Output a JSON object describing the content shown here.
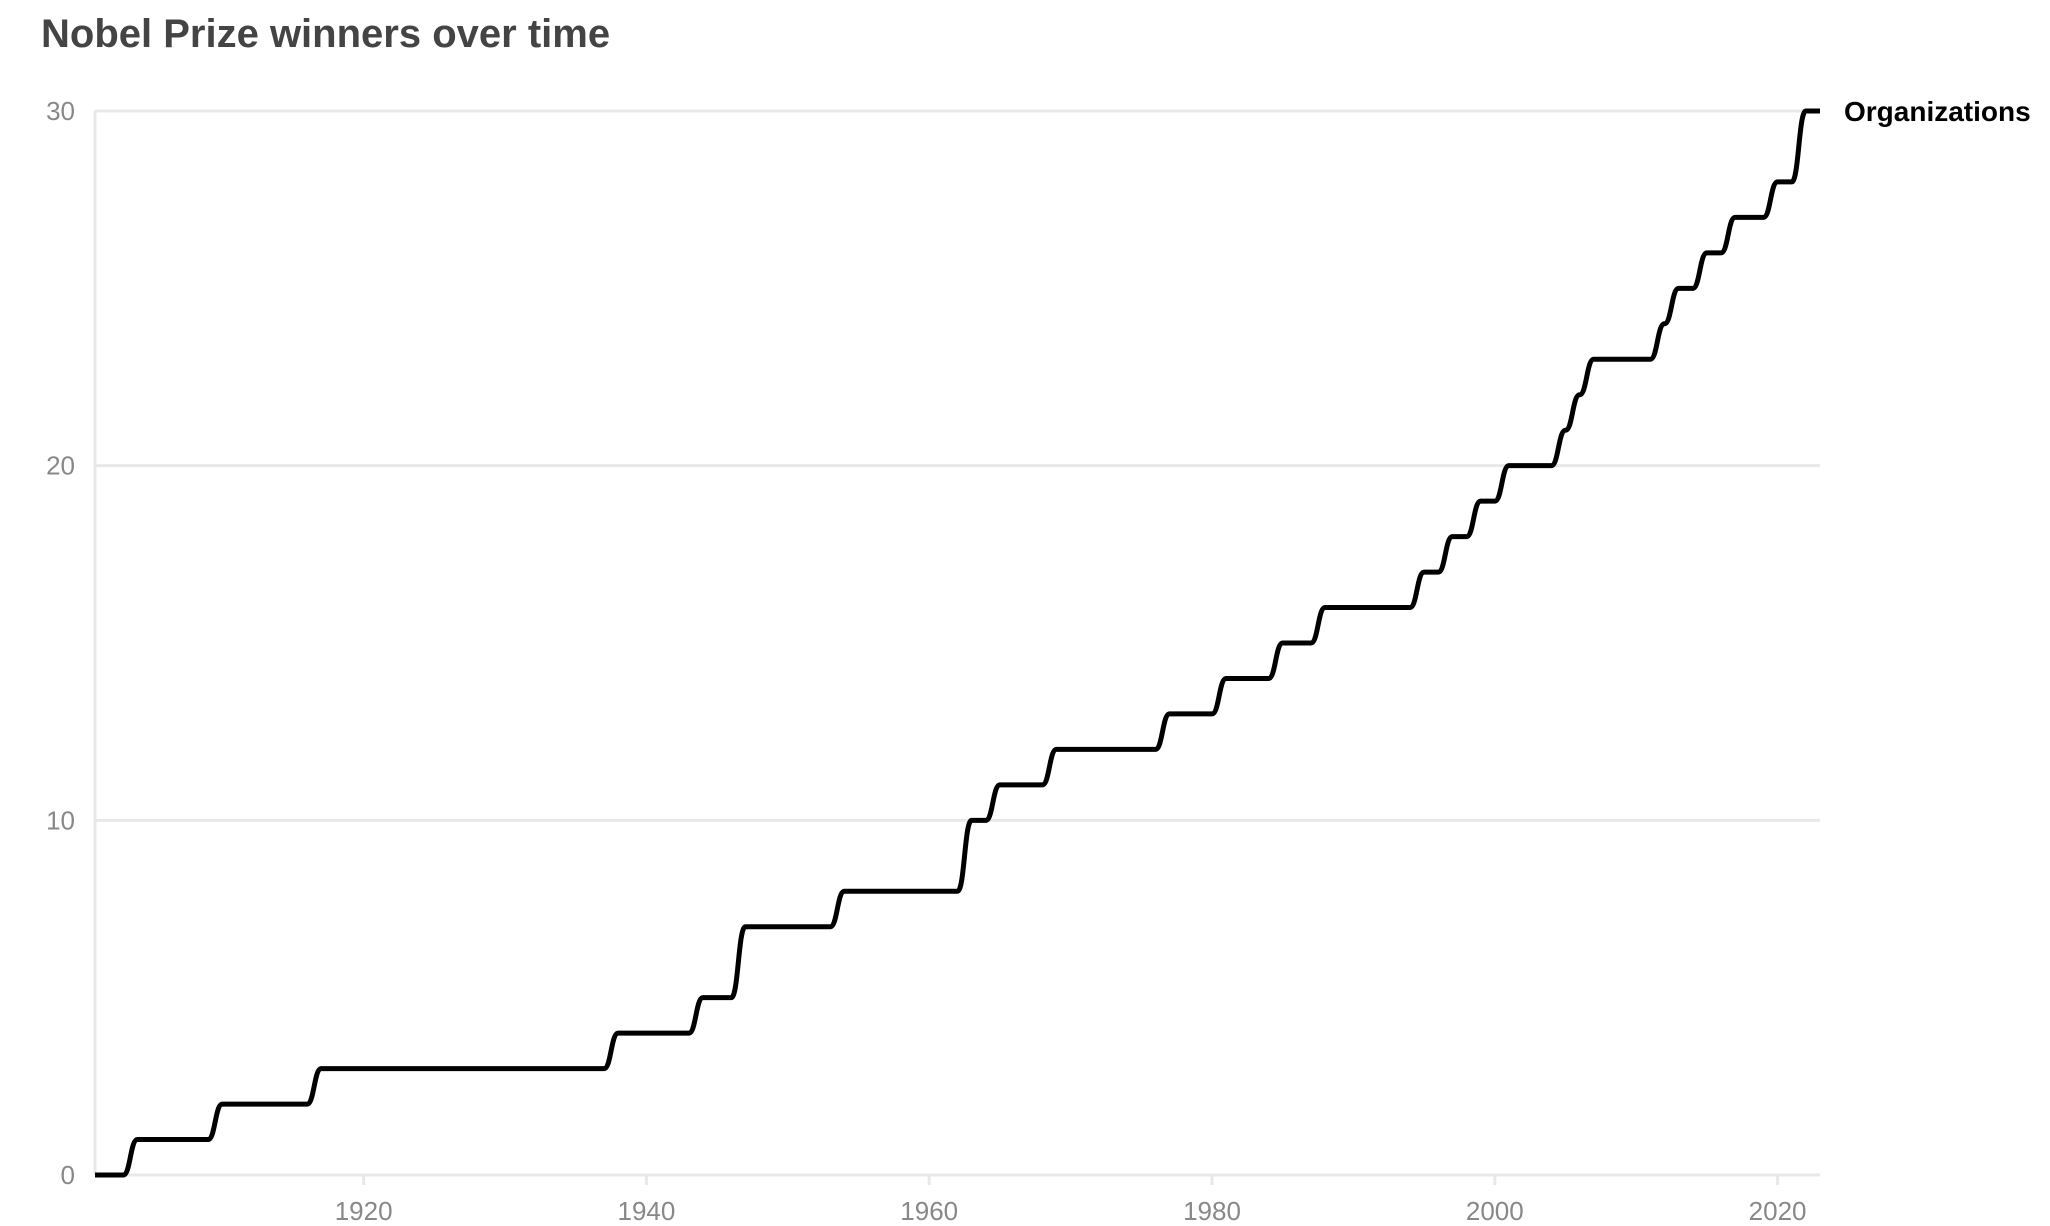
{
  "chart_data": {
    "type": "line",
    "title": "Nobel Prize winners over time",
    "xlabel": "",
    "ylabel": "",
    "xlim": [
      1901,
      2023
    ],
    "ylim": [
      0,
      30
    ],
    "x_ticks": [
      1920,
      1940,
      1960,
      1980,
      2000,
      2020
    ],
    "y_ticks": [
      0,
      10,
      20,
      30
    ],
    "grid": "horizontal",
    "legend": "label at line end (right)",
    "line_color": "#000000",
    "grid_color": "#e8e8e8",
    "tick_color": "#888888",
    "title_color": "#444444",
    "series": [
      {
        "name": "Organizations",
        "x": [
          1901,
          1902,
          1903,
          1904,
          1905,
          1906,
          1907,
          1908,
          1909,
          1910,
          1911,
          1912,
          1913,
          1914,
          1915,
          1916,
          1917,
          1918,
          1919,
          1920,
          1921,
          1922,
          1923,
          1924,
          1925,
          1926,
          1927,
          1928,
          1929,
          1930,
          1931,
          1932,
          1933,
          1934,
          1935,
          1936,
          1937,
          1938,
          1939,
          1940,
          1941,
          1942,
          1943,
          1944,
          1945,
          1946,
          1947,
          1948,
          1949,
          1950,
          1951,
          1952,
          1953,
          1954,
          1955,
          1956,
          1957,
          1958,
          1959,
          1960,
          1961,
          1962,
          1963,
          1964,
          1965,
          1966,
          1967,
          1968,
          1969,
          1970,
          1971,
          1972,
          1973,
          1974,
          1975,
          1976,
          1977,
          1978,
          1979,
          1980,
          1981,
          1982,
          1983,
          1984,
          1985,
          1986,
          1987,
          1988,
          1989,
          1990,
          1991,
          1992,
          1993,
          1994,
          1995,
          1996,
          1997,
          1998,
          1999,
          2000,
          2001,
          2002,
          2003,
          2004,
          2005,
          2006,
          2007,
          2008,
          2009,
          2010,
          2011,
          2012,
          2013,
          2014,
          2015,
          2016,
          2017,
          2018,
          2019,
          2020,
          2021,
          2022,
          2023
        ],
        "values": [
          0,
          0,
          0,
          1,
          1,
          1,
          1,
          1,
          1,
          2,
          2,
          2,
          2,
          2,
          2,
          2,
          3,
          3,
          3,
          3,
          3,
          3,
          3,
          3,
          3,
          3,
          3,
          3,
          3,
          3,
          3,
          3,
          3,
          3,
          3,
          3,
          3,
          4,
          4,
          4,
          4,
          4,
          4,
          5,
          5,
          5,
          7,
          7,
          7,
          7,
          7,
          7,
          7,
          8,
          8,
          8,
          8,
          8,
          8,
          8,
          8,
          8,
          10,
          10,
          11,
          11,
          11,
          11,
          12,
          12,
          12,
          12,
          12,
          12,
          12,
          12,
          13,
          13,
          13,
          13,
          14,
          14,
          14,
          14,
          15,
          15,
          15,
          16,
          16,
          16,
          16,
          16,
          16,
          16,
          17,
          17,
          18,
          18,
          19,
          19,
          20,
          20,
          20,
          20,
          21,
          22,
          23,
          23,
          23,
          23,
          23,
          24,
          25,
          25,
          26,
          26,
          27,
          27,
          27,
          28,
          28,
          30,
          30
        ]
      }
    ]
  }
}
